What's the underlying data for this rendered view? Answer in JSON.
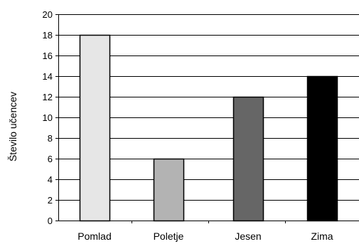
{
  "chart_data": {
    "type": "bar",
    "categories": [
      "Pomlad",
      "Poletje",
      "Jesen",
      "Zima"
    ],
    "values": [
      18,
      6,
      12,
      14
    ],
    "bar_colors": [
      "#e6e6e6",
      "#b3b3b3",
      "#666666",
      "#000000"
    ],
    "ylabel": "Število učencev",
    "ylim": [
      0,
      20
    ],
    "yticks": [
      0,
      2,
      4,
      6,
      8,
      10,
      12,
      14,
      16,
      18,
      20
    ],
    "grid": true,
    "legend": "none"
  }
}
